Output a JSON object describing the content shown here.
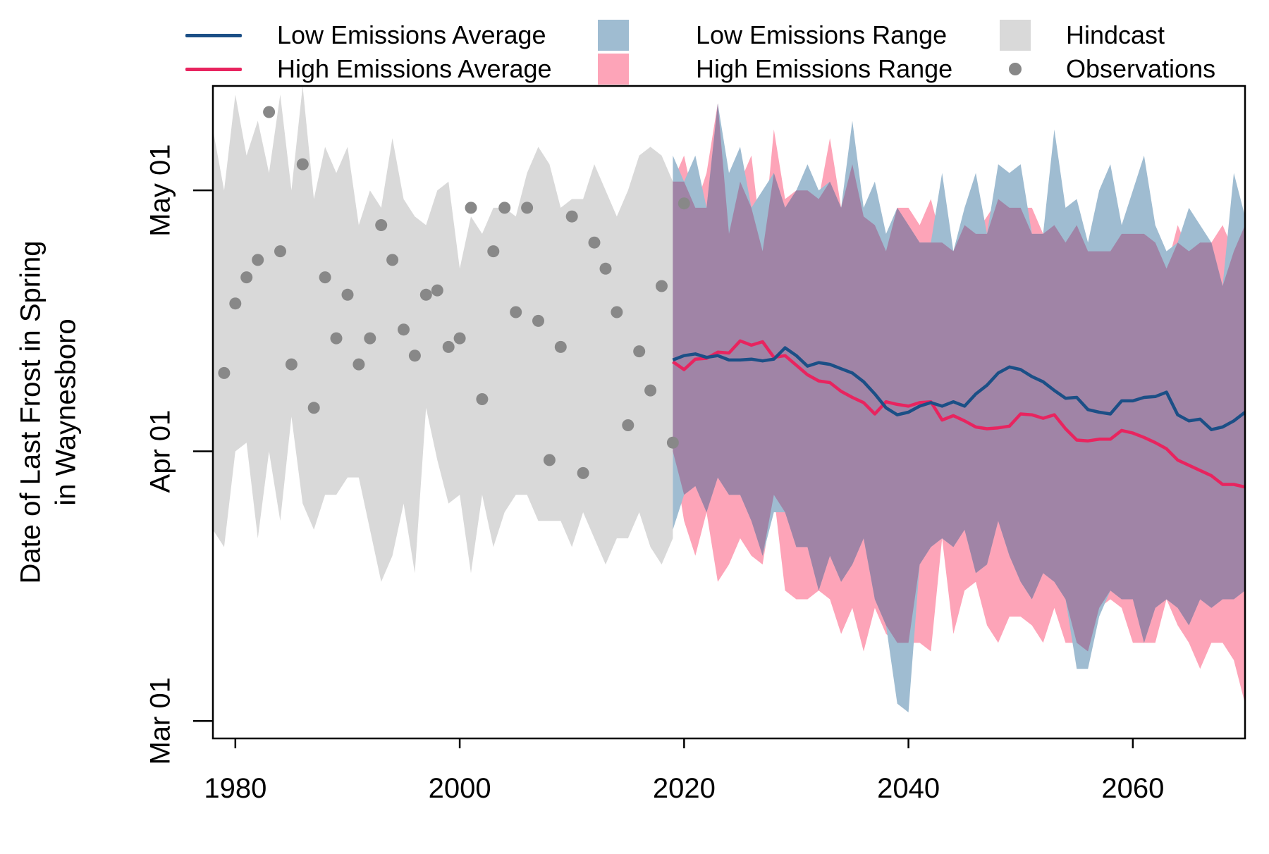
{
  "chart_data": {
    "type": "area",
    "title": "",
    "ylabel_line1": "Date of Last Frost in Spring",
    "ylabel_line2": "in Waynesboro",
    "xlabel": "",
    "xlim": [
      1978,
      2070
    ],
    "ylim_doy": [
      58,
      133
    ],
    "x_ticks": [
      1980,
      2000,
      2020,
      2040,
      2060
    ],
    "y_ticks": [
      {
        "label": "Mar 01",
        "doy": 60
      },
      {
        "label": "Apr 01",
        "doy": 91
      },
      {
        "label": "May 01",
        "doy": 121
      }
    ],
    "legend": {
      "placement": "top",
      "items": [
        {
          "key": "low_avg",
          "label": "Low Emissions Average",
          "kind": "line",
          "color": "#1b4f86"
        },
        {
          "key": "high_avg",
          "label": "High Emissions Average",
          "kind": "line",
          "color": "#e8245f"
        },
        {
          "key": "low_rng",
          "label": "Low Emissions Range",
          "kind": "box",
          "color": "#9fbcd1"
        },
        {
          "key": "high_rng",
          "label": "High Emissions Range",
          "kind": "box",
          "color": "#fda4b8"
        },
        {
          "key": "hind",
          "label": "Hindcast",
          "kind": "box",
          "color": "#d9d9d9"
        },
        {
          "key": "obs",
          "label": "Observations",
          "kind": "dot",
          "color": "#888888"
        }
      ]
    },
    "colors": {
      "hindcast": "#d9d9d9",
      "low_range": "#9fbcd1",
      "high_range": "#fda4b8",
      "overlap": "#a084a6",
      "low_avg": "#1b4f86",
      "high_avg": "#e8245f",
      "observations": "#888888"
    },
    "hindcast": {
      "x": [
        1978,
        1979,
        1980,
        1981,
        1982,
        1983,
        1984,
        1985,
        1986,
        1987,
        1988,
        1989,
        1990,
        1991,
        1992,
        1993,
        1994,
        1995,
        1996,
        1997,
        1998,
        1999,
        2000,
        2001,
        2002,
        2003,
        2004,
        2005,
        2006,
        2007,
        2008,
        2009,
        2010,
        2011,
        2012,
        2013,
        2014,
        2015,
        2016,
        2017,
        2018,
        2019
      ],
      "upper": [
        128,
        121,
        132,
        125,
        129,
        123,
        132,
        121,
        133,
        120,
        126,
        123,
        126,
        117,
        121,
        119,
        127,
        120,
        118,
        117,
        121,
        122,
        112,
        118,
        116,
        119,
        119,
        118,
        123,
        126,
        124,
        119,
        120,
        120,
        124,
        121,
        118,
        121,
        125,
        126,
        125,
        122
      ],
      "lower": [
        82,
        80,
        91,
        92,
        81,
        91,
        83,
        95,
        85,
        82,
        86,
        86,
        88,
        88,
        82,
        76,
        79,
        85,
        77,
        96,
        90,
        85,
        86,
        77,
        86,
        80,
        84,
        86,
        86,
        83,
        83,
        83,
        80,
        84,
        81,
        78,
        81,
        81,
        84,
        80,
        78,
        81
      ]
    },
    "observations": {
      "x": [
        1979,
        1980,
        1981,
        1982,
        1983,
        1984,
        1985,
        1986,
        1987,
        1988,
        1989,
        1990,
        1991,
        1992,
        1993,
        1994,
        1995,
        1996,
        1997,
        1998,
        1999,
        2000,
        2001,
        2002,
        2003,
        2004,
        2005,
        2006,
        2007,
        2008,
        2009,
        2010,
        2011,
        2012,
        2013,
        2014,
        2015,
        2016,
        2017,
        2018,
        2019,
        2020
      ],
      "y": [
        100,
        108,
        111,
        113,
        130,
        114,
        101,
        124,
        96,
        111,
        104,
        109,
        101,
        104,
        117,
        113,
        105,
        102,
        109,
        109.5,
        103,
        104,
        119,
        97,
        114,
        119,
        107,
        119,
        106,
        90,
        103,
        118,
        88.5,
        115,
        112,
        107,
        94,
        102.5,
        98,
        110,
        92,
        119.5
      ]
    },
    "low_range": {
      "x": [
        2019,
        2020,
        2021,
        2022,
        2023,
        2024,
        2025,
        2026,
        2027,
        2028,
        2029,
        2030,
        2031,
        2032,
        2033,
        2034,
        2035,
        2036,
        2037,
        2038,
        2039,
        2040,
        2041,
        2042,
        2043,
        2044,
        2045,
        2046,
        2047,
        2048,
        2049,
        2050,
        2051,
        2052,
        2053,
        2054,
        2055,
        2056,
        2057,
        2058,
        2059,
        2060,
        2061,
        2062,
        2063,
        2064,
        2065,
        2066,
        2067,
        2068,
        2069,
        2070
      ],
      "upper": [
        125,
        122,
        125,
        119,
        131,
        123,
        126,
        119,
        121,
        123,
        119,
        121,
        124,
        121,
        122,
        119,
        129,
        119,
        122,
        116,
        119,
        117,
        115,
        115,
        123,
        114,
        119,
        123,
        116,
        124,
        123,
        124,
        116,
        116,
        128,
        119,
        120,
        115,
        121,
        124,
        117,
        121,
        125,
        117,
        114,
        115,
        119,
        117,
        115,
        110,
        123,
        118
      ],
      "lower": [
        82,
        86,
        87,
        84,
        88,
        86,
        86,
        83,
        79,
        84,
        84,
        80,
        80,
        75,
        79,
        76,
        78,
        81,
        74,
        71,
        62,
        61,
        78,
        80,
        81,
        80,
        82,
        77,
        78,
        83,
        79,
        76,
        74,
        77,
        76,
        74,
        66,
        66,
        72,
        75,
        74,
        74,
        69,
        73,
        74,
        73,
        71,
        74,
        73,
        74,
        74,
        75
      ]
    },
    "high_range": {
      "x": [
        2019,
        2020,
        2021,
        2022,
        2023,
        2024,
        2025,
        2026,
        2027,
        2028,
        2029,
        2030,
        2031,
        2032,
        2033,
        2034,
        2035,
        2036,
        2037,
        2038,
        2039,
        2040,
        2041,
        2042,
        2043,
        2044,
        2045,
        2046,
        2047,
        2048,
        2049,
        2050,
        2051,
        2052,
        2053,
        2054,
        2055,
        2056,
        2057,
        2058,
        2059,
        2060,
        2061,
        2062,
        2063,
        2064,
        2065,
        2066,
        2067,
        2068,
        2069,
        2070
      ],
      "upper": [
        122,
        125,
        119,
        123,
        131,
        116,
        122,
        125,
        114,
        128,
        120,
        121,
        121,
        120,
        127,
        119,
        124,
        118,
        117,
        114,
        119,
        119,
        117,
        120,
        115,
        114,
        117,
        116,
        118,
        120,
        119,
        119,
        119,
        116,
        117,
        115,
        117,
        114,
        114,
        114,
        116,
        116,
        116,
        115,
        112,
        117,
        114,
        115,
        115,
        117,
        114,
        117
      ],
      "lower": [
        91,
        83,
        79,
        84,
        76,
        78,
        81,
        79,
        78,
        86,
        75,
        74,
        74,
        75,
        74,
        70,
        73,
        68,
        73,
        70,
        69,
        69,
        69,
        68,
        81,
        70,
        75,
        76,
        71,
        69,
        72,
        72,
        71,
        69,
        73,
        69,
        69,
        68,
        73,
        74,
        73,
        69,
        69,
        69,
        74,
        71,
        69,
        66,
        69,
        69,
        67,
        62
      ]
    },
    "low_avg": {
      "x": [
        2019,
        2020,
        2021,
        2022,
        2023,
        2024,
        2025,
        2026,
        2027,
        2028,
        2029,
        2030,
        2031,
        2032,
        2033,
        2034,
        2035,
        2036,
        2037,
        2038,
        2039,
        2040,
        2041,
        2042,
        2043,
        2044,
        2045,
        2046,
        2047,
        2048,
        2049,
        2050,
        2051,
        2052,
        2053,
        2054,
        2055,
        2056,
        2057,
        2058,
        2059,
        2060,
        2061,
        2062,
        2063,
        2064,
        2065,
        2066,
        2067,
        2068,
        2069,
        2070
      ],
      "y": [
        101.5,
        102.0,
        102.2,
        101.8,
        102.0,
        101.5,
        101.5,
        101.6,
        101.4,
        101.6,
        102.9,
        102.0,
        100.8,
        101.2,
        101.0,
        100.5,
        100.0,
        99.0,
        97.6,
        96.0,
        95.2,
        95.5,
        96.2,
        96.6,
        96.2,
        96.7,
        96.2,
        97.6,
        98.6,
        100.0,
        100.7,
        100.4,
        99.6,
        99.0,
        98.0,
        97.1,
        97.2,
        95.8,
        95.5,
        95.3,
        96.8,
        96.8,
        97.2,
        97.3,
        97.8,
        95.2,
        94.5,
        94.7,
        93.5,
        93.8,
        94.5,
        95.5
      ]
    },
    "high_avg": {
      "x": [
        2019,
        2020,
        2021,
        2022,
        2023,
        2024,
        2025,
        2026,
        2027,
        2028,
        2029,
        2030,
        2031,
        2032,
        2033,
        2034,
        2035,
        2036,
        2037,
        2038,
        2039,
        2040,
        2041,
        2042,
        2043,
        2044,
        2045,
        2046,
        2047,
        2048,
        2049,
        2050,
        2051,
        2052,
        2053,
        2054,
        2055,
        2056,
        2057,
        2058,
        2059,
        2060,
        2061,
        2062,
        2063,
        2064,
        2065,
        2066,
        2067,
        2068,
        2069,
        2070
      ],
      "y": [
        101.3,
        100.4,
        101.6,
        101.7,
        102.4,
        102.3,
        103.7,
        103.2,
        103.6,
        101.8,
        102.0,
        100.9,
        99.8,
        99.1,
        98.9,
        97.9,
        97.2,
        96.6,
        95.3,
        96.7,
        96.4,
        96.2,
        96.6,
        96.7,
        94.6,
        95.1,
        94.5,
        93.8,
        93.6,
        93.7,
        93.9,
        95.3,
        95.2,
        94.8,
        95.2,
        93.6,
        92.3,
        92.2,
        92.4,
        92.4,
        93.4,
        93.1,
        92.6,
        92.0,
        91.3,
        90.0,
        89.4,
        88.8,
        88.2,
        87.2,
        87.2,
        86.9
      ]
    }
  }
}
